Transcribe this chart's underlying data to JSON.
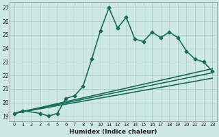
{
  "xlabel": "Humidex (Indice chaleur)",
  "background_color": "#cde8e5",
  "grid_color": "#aecfcc",
  "line_color": "#1a6b5a",
  "xlim": [
    -0.5,
    23.5
  ],
  "ylim": [
    18.6,
    27.4
  ],
  "xticks": [
    0,
    1,
    2,
    3,
    4,
    5,
    6,
    7,
    8,
    9,
    10,
    11,
    12,
    13,
    14,
    15,
    16,
    17,
    18,
    19,
    20,
    21,
    22,
    23
  ],
  "yticks": [
    19,
    20,
    21,
    22,
    23,
    24,
    25,
    26,
    27
  ],
  "series": [
    {
      "x": [
        0,
        1,
        3,
        4,
        5,
        6,
        7,
        8,
        9,
        10,
        11,
        12,
        13,
        14,
        15,
        16,
        17,
        18,
        19,
        20,
        21,
        22,
        23
      ],
      "y": [
        19.2,
        19.4,
        19.2,
        19.0,
        19.2,
        20.3,
        20.5,
        21.2,
        23.2,
        25.3,
        27.0,
        25.5,
        26.3,
        24.7,
        24.5,
        25.2,
        24.8,
        25.2,
        24.8,
        23.8,
        23.2,
        23.0,
        22.3
      ],
      "marker": "D",
      "markersize": 2.5,
      "linewidth": 1.2,
      "with_markers": true
    },
    {
      "x": [
        0,
        23
      ],
      "y": [
        19.2,
        22.5
      ],
      "linewidth": 1.2,
      "with_markers": false
    },
    {
      "x": [
        0,
        23
      ],
      "y": [
        19.2,
        22.2
      ],
      "linewidth": 1.2,
      "with_markers": false
    },
    {
      "x": [
        0,
        23
      ],
      "y": [
        19.2,
        21.8
      ],
      "linewidth": 1.2,
      "with_markers": false
    }
  ],
  "xlabel_fontsize": 6.5,
  "xtick_fontsize": 4.8,
  "ytick_fontsize": 5.5
}
